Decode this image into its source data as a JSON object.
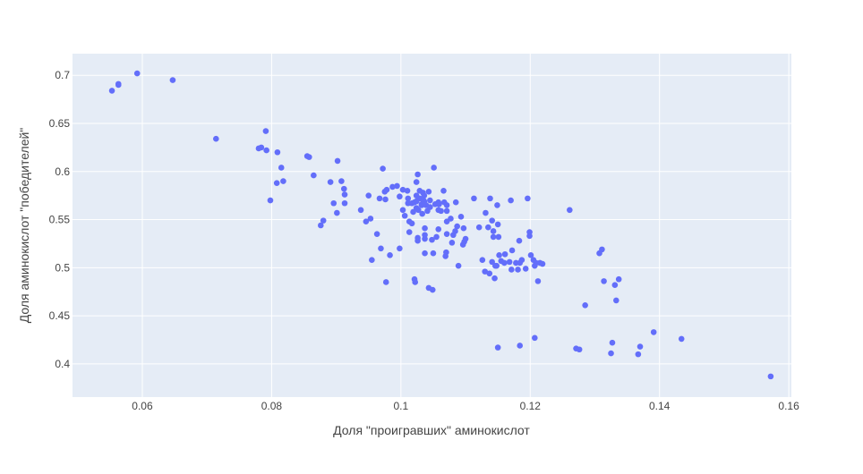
{
  "chart_data": {
    "type": "scatter",
    "title": "",
    "xlabel": "Доля \"проигравших\" аминокислот",
    "ylabel": "Доля аминокислот \"победителей\"",
    "xlim": [
      0.0492,
      0.1604
    ],
    "ylim": [
      0.3655,
      0.7225
    ],
    "x_ticks": [
      0.06,
      0.08,
      0.1,
      0.12,
      0.14,
      0.16
    ],
    "y_ticks": [
      0.4,
      0.45,
      0.5,
      0.55,
      0.6,
      0.65,
      0.7
    ],
    "x_tick_labels": [
      "0.06",
      "0.08",
      "0.1",
      "0.12",
      "0.14",
      "0.16"
    ],
    "y_tick_labels": [
      "0.4",
      "0.45",
      "0.5",
      "0.55",
      "0.6",
      "0.65",
      "0.7"
    ],
    "grid": true,
    "legend": "none",
    "colors": {
      "marker": "#636efa",
      "plot_bg": "#e5ecf6",
      "grid": "#ffffff",
      "text": "#444444"
    },
    "points": [
      [
        0.0553,
        0.684
      ],
      [
        0.0563,
        0.69
      ],
      [
        0.0563,
        0.691
      ],
      [
        0.0592,
        0.702
      ],
      [
        0.0647,
        0.695
      ],
      [
        0.0714,
        0.634
      ],
      [
        0.078,
        0.624
      ],
      [
        0.0784,
        0.625
      ],
      [
        0.0791,
        0.642
      ],
      [
        0.0792,
        0.622
      ],
      [
        0.0798,
        0.57
      ],
      [
        0.0809,
        0.62
      ],
      [
        0.0808,
        0.588
      ],
      [
        0.0815,
        0.604
      ],
      [
        0.0818,
        0.59
      ],
      [
        0.0855,
        0.616
      ],
      [
        0.0858,
        0.615
      ],
      [
        0.0865,
        0.596
      ],
      [
        0.0876,
        0.544
      ],
      [
        0.088,
        0.549
      ],
      [
        0.0891,
        0.589
      ],
      [
        0.0896,
        0.567
      ],
      [
        0.0901,
        0.557
      ],
      [
        0.0902,
        0.611
      ],
      [
        0.0908,
        0.59
      ],
      [
        0.0912,
        0.582
      ],
      [
        0.0913,
        0.576
      ],
      [
        0.0913,
        0.567
      ],
      [
        0.0938,
        0.56
      ],
      [
        0.0946,
        0.548
      ],
      [
        0.095,
        0.575
      ],
      [
        0.0953,
        0.551
      ],
      [
        0.0955,
        0.508
      ],
      [
        0.0963,
        0.535
      ],
      [
        0.0967,
        0.572
      ],
      [
        0.0969,
        0.52
      ],
      [
        0.0972,
        0.603
      ],
      [
        0.0975,
        0.579
      ],
      [
        0.0976,
        0.571
      ],
      [
        0.0978,
        0.581
      ],
      [
        0.0977,
        0.485
      ],
      [
        0.0983,
        0.513
      ],
      [
        0.0987,
        0.584
      ],
      [
        0.0994,
        0.585
      ],
      [
        0.0998,
        0.52
      ],
      [
        0.0998,
        0.574
      ],
      [
        0.1003,
        0.581
      ],
      [
        0.1003,
        0.56
      ],
      [
        0.1006,
        0.554
      ],
      [
        0.101,
        0.58
      ],
      [
        0.1011,
        0.572
      ],
      [
        0.1011,
        0.567
      ],
      [
        0.1013,
        0.548
      ],
      [
        0.1013,
        0.537
      ],
      [
        0.1017,
        0.546
      ],
      [
        0.1017,
        0.567
      ],
      [
        0.1019,
        0.558
      ],
      [
        0.1021,
        0.568
      ],
      [
        0.1021,
        0.488
      ],
      [
        0.1022,
        0.485
      ],
      [
        0.1024,
        0.589
      ],
      [
        0.1024,
        0.575
      ],
      [
        0.1024,
        0.569
      ],
      [
        0.1024,
        0.562
      ],
      [
        0.1026,
        0.597
      ],
      [
        0.1026,
        0.531
      ],
      [
        0.1026,
        0.528
      ],
      [
        0.1027,
        0.56
      ],
      [
        0.1029,
        0.58
      ],
      [
        0.1029,
        0.572
      ],
      [
        0.1032,
        0.566
      ],
      [
        0.1033,
        0.556
      ],
      [
        0.1032,
        0.565
      ],
      [
        0.1034,
        0.578
      ],
      [
        0.1035,
        0.57
      ],
      [
        0.1036,
        0.569
      ],
      [
        0.1036,
        0.575
      ],
      [
        0.1037,
        0.53
      ],
      [
        0.1037,
        0.534
      ],
      [
        0.1037,
        0.541
      ],
      [
        0.1037,
        0.515
      ],
      [
        0.1039,
        0.565
      ],
      [
        0.1041,
        0.559
      ],
      [
        0.1043,
        0.579
      ],
      [
        0.1043,
        0.479
      ],
      [
        0.1045,
        0.563
      ],
      [
        0.1045,
        0.57
      ],
      [
        0.1048,
        0.529
      ],
      [
        0.1049,
        0.477
      ],
      [
        0.105,
        0.515
      ],
      [
        0.1051,
        0.604
      ],
      [
        0.1053,
        0.566
      ],
      [
        0.1055,
        0.532
      ],
      [
        0.1058,
        0.56
      ],
      [
        0.1058,
        0.568
      ],
      [
        0.1058,
        0.54
      ],
      [
        0.1059,
        0.566
      ],
      [
        0.1062,
        0.559
      ],
      [
        0.1066,
        0.58
      ],
      [
        0.1067,
        0.568
      ],
      [
        0.1069,
        0.512
      ],
      [
        0.107,
        0.516
      ],
      [
        0.1071,
        0.548
      ],
      [
        0.1071,
        0.535
      ],
      [
        0.1071,
        0.559
      ],
      [
        0.1071,
        0.565
      ],
      [
        0.1077,
        0.551
      ],
      [
        0.1079,
        0.526
      ],
      [
        0.1081,
        0.534
      ],
      [
        0.1084,
        0.538
      ],
      [
        0.1085,
        0.568
      ],
      [
        0.1087,
        0.543
      ],
      [
        0.1089,
        0.502
      ],
      [
        0.1093,
        0.553
      ],
      [
        0.1096,
        0.524
      ],
      [
        0.1097,
        0.541
      ],
      [
        0.1098,
        0.527
      ],
      [
        0.11,
        0.53
      ],
      [
        0.1113,
        0.572
      ],
      [
        0.1121,
        0.542
      ],
      [
        0.1126,
        0.508
      ],
      [
        0.113,
        0.496
      ],
      [
        0.1131,
        0.557
      ],
      [
        0.1135,
        0.542
      ],
      [
        0.1137,
        0.494
      ],
      [
        0.1138,
        0.572
      ],
      [
        0.1141,
        0.549
      ],
      [
        0.1143,
        0.532
      ],
      [
        0.1141,
        0.506
      ],
      [
        0.1143,
        0.538
      ],
      [
        0.1145,
        0.489
      ],
      [
        0.1146,
        0.502
      ],
      [
        0.1148,
        0.502
      ],
      [
        0.1149,
        0.565
      ],
      [
        0.115,
        0.545
      ],
      [
        0.1151,
        0.532
      ],
      [
        0.115,
        0.417
      ],
      [
        0.1152,
        0.513
      ],
      [
        0.1155,
        0.507
      ],
      [
        0.116,
        0.505
      ],
      [
        0.1161,
        0.514
      ],
      [
        0.1168,
        0.506
      ],
      [
        0.117,
        0.57
      ],
      [
        0.1171,
        0.498
      ],
      [
        0.1172,
        0.518
      ],
      [
        0.1178,
        0.505
      ],
      [
        0.1181,
        0.498
      ],
      [
        0.1183,
        0.528
      ],
      [
        0.1184,
        0.505
      ],
      [
        0.1184,
        0.419
      ],
      [
        0.1187,
        0.508
      ],
      [
        0.1193,
        0.499
      ],
      [
        0.1196,
        0.572
      ],
      [
        0.1199,
        0.537
      ],
      [
        0.1199,
        0.533
      ],
      [
        0.1201,
        0.513
      ],
      [
        0.1205,
        0.508
      ],
      [
        0.1207,
        0.502
      ],
      [
        0.1207,
        0.427
      ],
      [
        0.1209,
        0.505
      ],
      [
        0.1212,
        0.486
      ],
      [
        0.1215,
        0.505
      ],
      [
        0.1219,
        0.504
      ],
      [
        0.1261,
        0.56
      ],
      [
        0.1271,
        0.416
      ],
      [
        0.1276,
        0.415
      ],
      [
        0.1285,
        0.461
      ],
      [
        0.1307,
        0.515
      ],
      [
        0.1311,
        0.519
      ],
      [
        0.1314,
        0.486
      ],
      [
        0.1325,
        0.411
      ],
      [
        0.1327,
        0.422
      ],
      [
        0.1331,
        0.482
      ],
      [
        0.1333,
        0.466
      ],
      [
        0.1337,
        0.488
      ],
      [
        0.1367,
        0.41
      ],
      [
        0.137,
        0.418
      ],
      [
        0.1391,
        0.433
      ],
      [
        0.1434,
        0.426
      ],
      [
        0.1572,
        0.387
      ]
    ]
  }
}
